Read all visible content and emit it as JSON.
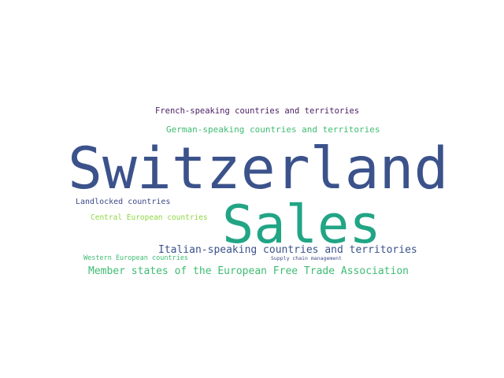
{
  "cloud": {
    "words": [
      {
        "id": "switzerland",
        "text": "Switzerland",
        "color": "#3b528b"
      },
      {
        "id": "sales",
        "text": "Sales",
        "color": "#21a585"
      },
      {
        "id": "french",
        "text": "French-speaking countries and territories",
        "color": "#4b1d63"
      },
      {
        "id": "german",
        "text": "German-speaking countries and territories",
        "color": "#3fbc73"
      },
      {
        "id": "landlocked",
        "text": "Landlocked countries",
        "color": "#3e4a89"
      },
      {
        "id": "central",
        "text": "Central European countries",
        "color": "#8fd744"
      },
      {
        "id": "italian",
        "text": "Italian-speaking countries and territories",
        "color": "#3b528b"
      },
      {
        "id": "western",
        "text": "Western European countries",
        "color": "#3fbc73"
      },
      {
        "id": "supply",
        "text": "Supply chain management",
        "color": "#3e4a89"
      },
      {
        "id": "efta",
        "text": "Member states of the European Free Trade Association",
        "color": "#3fbc73"
      }
    ]
  }
}
